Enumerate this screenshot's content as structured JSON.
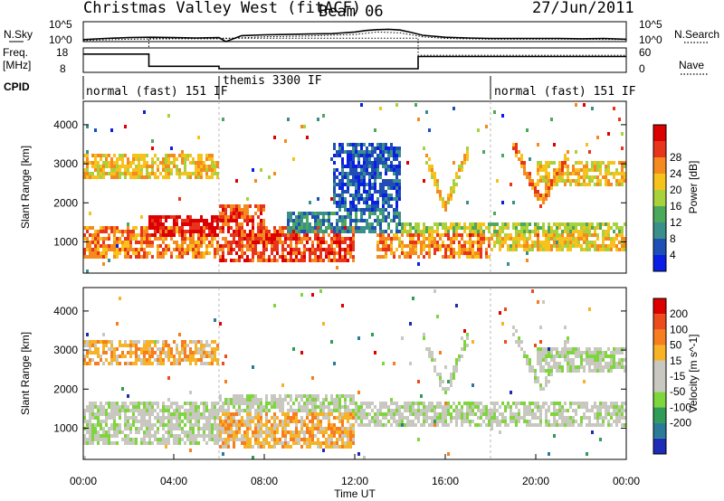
{
  "header": {
    "title": "Christmas Valley West (fitACF)",
    "beam": "Beam 06",
    "date": "27/Jun/2011"
  },
  "chart_data": [
    {
      "type": "line",
      "id": "nsky-nsearch",
      "left_label": "N.Sky",
      "right_label": "N.Search",
      "left_ticks": [
        "10^5",
        "10^0"
      ],
      "right_ticks": [
        "10^5",
        "10^0"
      ],
      "series": [
        {
          "name": "N.Sky",
          "style": "solid",
          "x": [
            0,
            1,
            2,
            3,
            4,
            5,
            6,
            6.3,
            7,
            8,
            9,
            10,
            11,
            12,
            12.5,
            13,
            13.5,
            14,
            14.5,
            15,
            16,
            17,
            18,
            19,
            20,
            21,
            22,
            23,
            24
          ],
          "y": [
            0.5,
            0.8,
            1.0,
            1.1,
            1.0,
            0.9,
            1.0,
            0,
            1.5,
            1.7,
            1.8,
            1.9,
            2.0,
            2.4,
            2.8,
            3.0,
            3.1,
            2.9,
            2.3,
            1.6,
            1.1,
            0.9,
            0.8,
            0.8,
            0.8,
            0.8,
            0.7,
            0.8,
            0.6
          ]
        },
        {
          "name": "N.Search",
          "style": "dotted",
          "x": [
            0,
            2,
            4,
            6,
            8,
            10,
            12,
            13,
            14,
            15,
            16,
            18,
            20,
            22,
            24
          ],
          "y": [
            0.3,
            0.6,
            0.7,
            0.7,
            1.2,
            1.4,
            1.8,
            2.4,
            2.2,
            1.2,
            0.8,
            0.6,
            0.6,
            0.6,
            0.5
          ]
        }
      ],
      "xlim": [
        0,
        24
      ],
      "ylim": [
        0,
        5
      ]
    },
    {
      "type": "line",
      "id": "freq-nave",
      "left_label": "Freq.",
      "left_unit": "[MHz]",
      "right_label": "Nave",
      "left_ticks": [
        "18",
        "8"
      ],
      "right_ticks": [
        "60",
        "0"
      ],
      "series": [
        {
          "name": "Freq.",
          "style": "solid",
          "x": [
            0,
            2.9,
            2.9,
            6,
            6,
            14.8,
            14.8,
            24
          ],
          "y": [
            15.5,
            15.5,
            10.5,
            10.5,
            9.5,
            9.5,
            14.5,
            14.5
          ]
        },
        {
          "name": "Nave",
          "style": "dotted",
          "x": [
            0,
            2.9,
            2.9,
            14.8,
            14.8,
            24
          ],
          "y": [
            18,
            18,
            22,
            22,
            15,
            15
          ]
        }
      ],
      "ylim": [
        8,
        18
      ],
      "right_ylim": [
        0,
        60
      ]
    },
    {
      "type": "table",
      "id": "cpid",
      "label": "CPID",
      "segments": [
        {
          "start": 0,
          "end": 6,
          "text": "normal (fast) 151 IF"
        },
        {
          "start": 6,
          "end": 18,
          "text": "themis 3300 IF"
        },
        {
          "start": 18,
          "end": 24,
          "text": "normal (fast) 151 IF"
        }
      ]
    },
    {
      "type": "heatmap",
      "id": "power",
      "ylabel": "Slant Range [km]",
      "yticks": [
        1000,
        2000,
        3000,
        4000
      ],
      "ylim": [
        200,
        4600
      ],
      "xlim": [
        0,
        24
      ],
      "colorbar": {
        "label": "Power [dB]",
        "ticks": [
          "4",
          "8",
          "12",
          "16",
          "20",
          "24",
          "28"
        ],
        "colors": [
          "#0a1ee6",
          "#1f4fb4",
          "#3a8f8a",
          "#4ca85a",
          "#a8d23c",
          "#f7c21c",
          "#f58a1e",
          "#e9341c",
          "#dd0000"
        ]
      },
      "bands": [
        {
          "t0": 0,
          "t1": 6,
          "r0": 600,
          "r1": 1400,
          "level": 6
        },
        {
          "t0": 2.9,
          "t1": 6,
          "r0": 1150,
          "r1": 1700,
          "level": 8
        },
        {
          "t0": 0,
          "t1": 6,
          "r0": 2600,
          "r1": 3300,
          "level": 5
        },
        {
          "t0": 6,
          "t1": 12,
          "r0": 500,
          "r1": 1400,
          "level": 7
        },
        {
          "t0": 6,
          "t1": 8,
          "r0": 1400,
          "r1": 2000,
          "level": 7
        },
        {
          "t0": 9,
          "t1": 14,
          "r0": 1200,
          "r1": 1800,
          "level": 2
        },
        {
          "t0": 13,
          "t1": 18,
          "r0": 600,
          "r1": 1200,
          "level": 6
        },
        {
          "t0": 14,
          "t1": 24,
          "r0": 1200,
          "r1": 1500,
          "level": 4
        },
        {
          "t0": 18,
          "t1": 24,
          "r0": 800,
          "r1": 1200,
          "level": 5
        },
        {
          "t0": 20,
          "t1": 24,
          "r0": 2400,
          "r1": 3100,
          "level": 5
        },
        {
          "t0": 11,
          "t1": 14,
          "r0": 1800,
          "r1": 3500,
          "level": 1
        }
      ],
      "arcs": [
        {
          "t0": 15,
          "t1": 17,
          "r_start": 3400,
          "r_end": 1900,
          "r_back": 3300,
          "level": 5
        },
        {
          "t0": 19,
          "t1": 21.5,
          "r_start": 3500,
          "r_end": 2000,
          "r_back": 3300,
          "level": 6
        }
      ]
    },
    {
      "type": "heatmap",
      "id": "velocity",
      "ylabel": "Slant Range [km]",
      "yticks": [
        1000,
        2000,
        3000,
        4000
      ],
      "ylim": [
        200,
        4600
      ],
      "xlim": [
        0,
        24
      ],
      "xticks": [
        "00:00",
        "04:00",
        "08:00",
        "12:00",
        "16:00",
        "20:00",
        "00:00"
      ],
      "xlabel": "Time UT",
      "colorbar": {
        "label": "Velocity [m s^-1]",
        "ticks": [
          "200",
          "100",
          "50",
          "15",
          "-15",
          "-50",
          "-100",
          "-200"
        ],
        "colors": [
          "#1c2cb6",
          "#2a7a98",
          "#2f9c57",
          "#7fd63c",
          "#c8c8c0",
          "#c8c8c0",
          "#f7b225",
          "#f77d1e",
          "#ee4b1c",
          "#dd0000"
        ]
      },
      "bands": [
        {
          "t0": 0,
          "t1": 6,
          "r0": 600,
          "r1": 1700,
          "level": 4
        },
        {
          "t0": 0,
          "t1": 6,
          "r0": 2600,
          "r1": 3300,
          "level": 6
        },
        {
          "t0": 6,
          "t1": 12,
          "r0": 500,
          "r1": 1400,
          "level": 6
        },
        {
          "t0": 6,
          "t1": 12,
          "r0": 1400,
          "r1": 1900,
          "level": 4
        },
        {
          "t0": 12,
          "t1": 24,
          "r0": 1000,
          "r1": 1700,
          "level": 4
        },
        {
          "t0": 20,
          "t1": 24,
          "r0": 2400,
          "r1": 3100,
          "level": 4
        }
      ],
      "arcs": [
        {
          "t0": 15,
          "t1": 17,
          "r_start": 3400,
          "r_end": 1900,
          "r_back": 3300,
          "level": 4
        },
        {
          "t0": 19,
          "t1": 21.5,
          "r_start": 3500,
          "r_end": 2000,
          "r_back": 3300,
          "level": 4
        }
      ]
    }
  ]
}
